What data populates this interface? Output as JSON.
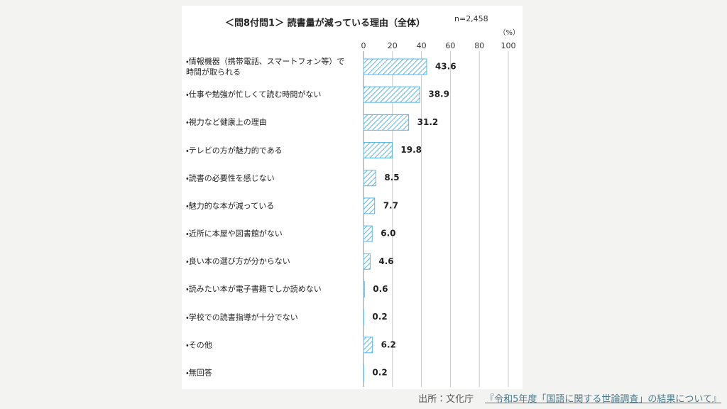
{
  "chart_data": {
    "type": "bar",
    "orientation": "horizontal",
    "title": "＜問8付問1＞ 読書量が減っている理由（全体）",
    "note": "n=2,458",
    "unit": "（%）",
    "categories": [
      "・情報機器（携帯電話、スマートフォン等）で\n時間が取られる",
      "・仕事や勉強が忙しくて読む時間がない",
      "・視力など健康上の理由",
      "・テレビの方が魅力的である",
      "・読書の必要性を感じない",
      "・魅力的な本が減っている",
      "・近所に本屋や図書館がない",
      "・良い本の選び方が分からない",
      "・読みたい本が電子書籍でしか読めない",
      "・学校での読書指導が十分でない",
      "・その他",
      "・無回答"
    ],
    "values": [
      43.6,
      38.9,
      31.2,
      19.8,
      8.5,
      7.7,
      6.0,
      4.6,
      0.6,
      0.2,
      6.2,
      0.2
    ],
    "value_labels": [
      "43.6",
      "38.9",
      "31.2",
      "19.8",
      "8.5",
      "7.7",
      "6.0",
      "4.6",
      "0.6",
      "0.2",
      "6.2",
      "0.2"
    ],
    "color": "#5ab4e5",
    "xlim": [
      0,
      100
    ],
    "xticks": [
      0,
      20,
      40,
      60,
      80,
      100
    ],
    "grid": true
  },
  "footer": {
    "source": "出所：文化庁",
    "link": "『令和5年度「国語に関する世論調査」の結果について』"
  }
}
